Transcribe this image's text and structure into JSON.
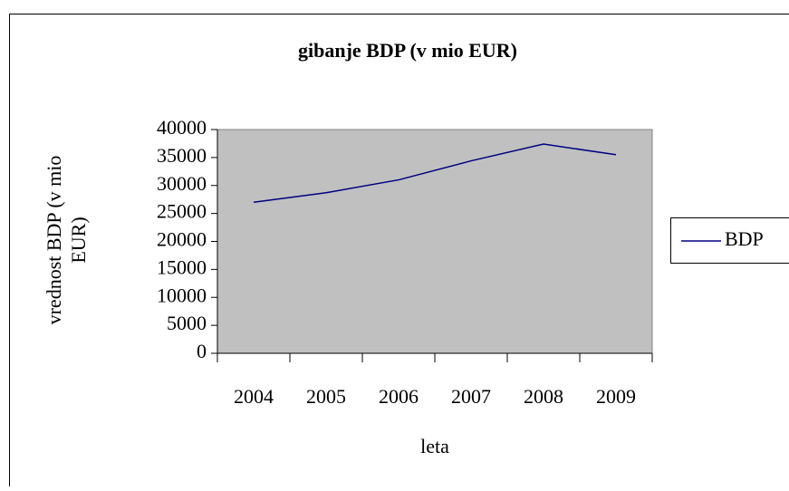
{
  "chart_data": {
    "type": "line",
    "title": "gibanje BDP (v mio EUR)",
    "x_label": "leta",
    "y_label": [
      "vrednost BDP (v mio",
      "EUR)"
    ],
    "categories": [
      "2004",
      "2005",
      "2006",
      "2007",
      "2008",
      "2009"
    ],
    "series": [
      {
        "name": "BDP",
        "color": "#000080",
        "values": [
          27000,
          28700,
          31000,
          34400,
          37400,
          35500
        ]
      }
    ],
    "ylim": [
      0,
      40000
    ],
    "yticks": [
      0,
      5000,
      10000,
      15000,
      20000,
      25000,
      30000,
      35000,
      40000
    ],
    "legend": "right"
  }
}
